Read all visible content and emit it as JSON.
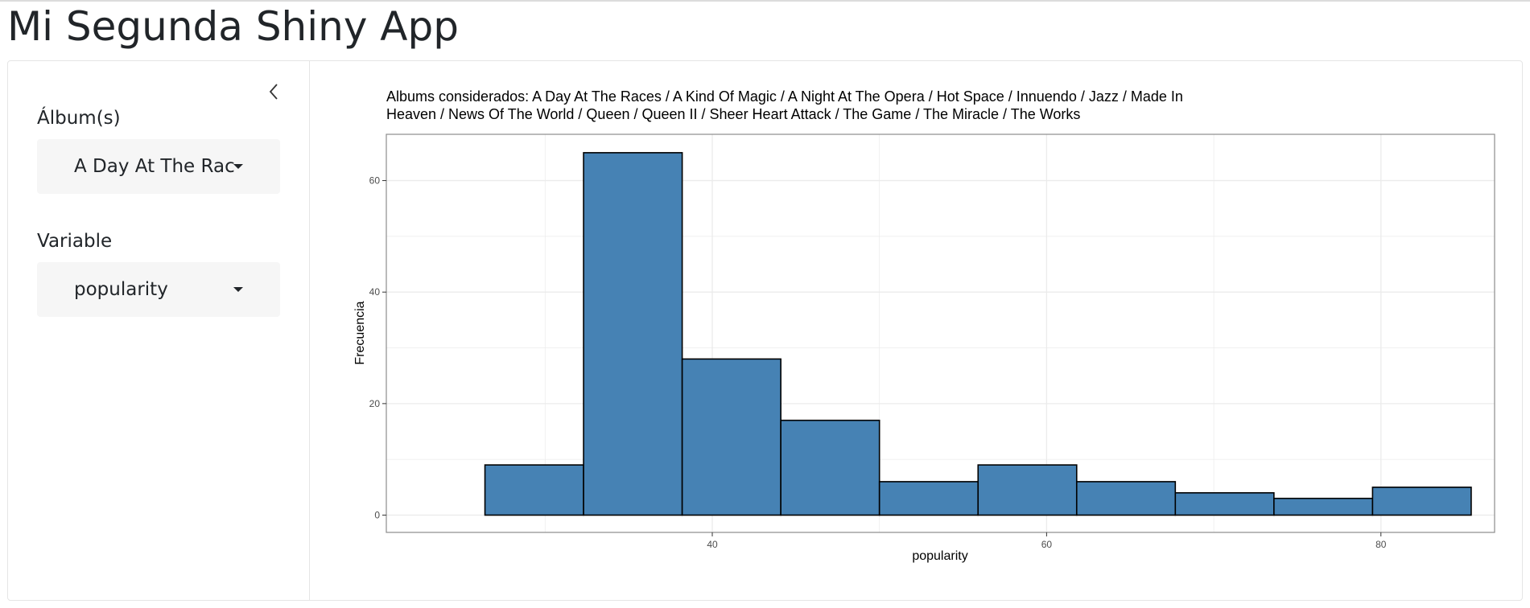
{
  "app": {
    "title": "Mi Segunda Shiny App"
  },
  "sidebar": {
    "album_label": "Álbum(s)",
    "album_selected": "A Day At The Races",
    "variable_label": "Variable",
    "variable_selected": "popularity"
  },
  "colors": {
    "bar_fill": "#4682b4",
    "bar_stroke": "#000000",
    "grid": "#ebebeb",
    "panel_border": "#8c8c8c"
  },
  "icons": {
    "collapse": "chevron-left-icon",
    "dropdown": "caret-down-icon"
  },
  "chart_data": {
    "type": "bar",
    "title_lines": [
      "Albums considerados: A Day At The Races / A Kind Of Magic / A Night At The Opera / Hot Space / Innuendo / Jazz / Made In",
      "Heaven / News Of The World / Queen / Queen II / Sheer Heart Attack / The Game / The Miracle / The Works"
    ],
    "xlabel": "popularity",
    "ylabel": "Frecuencia",
    "xlim": [
      20.5,
      86.8
    ],
    "ylim": [
      -3.1,
      68.3
    ],
    "x_ticks": [
      40,
      60,
      80
    ],
    "y_ticks": [
      0,
      20,
      40,
      60
    ],
    "grid": true,
    "bins": [
      {
        "x0": 26.4,
        "x1": 32.3,
        "count": 9
      },
      {
        "x0": 32.3,
        "x1": 38.2,
        "count": 65
      },
      {
        "x0": 38.2,
        "x1": 44.1,
        "count": 28
      },
      {
        "x0": 44.1,
        "x1": 50.0,
        "count": 17
      },
      {
        "x0": 50.0,
        "x1": 55.9,
        "count": 6
      },
      {
        "x0": 55.9,
        "x1": 61.8,
        "count": 9
      },
      {
        "x0": 61.8,
        "x1": 67.7,
        "count": 6
      },
      {
        "x0": 67.7,
        "x1": 73.6,
        "count": 4
      },
      {
        "x0": 73.6,
        "x1": 79.5,
        "count": 3
      },
      {
        "x0": 79.5,
        "x1": 85.4,
        "count": 5
      }
    ]
  }
}
